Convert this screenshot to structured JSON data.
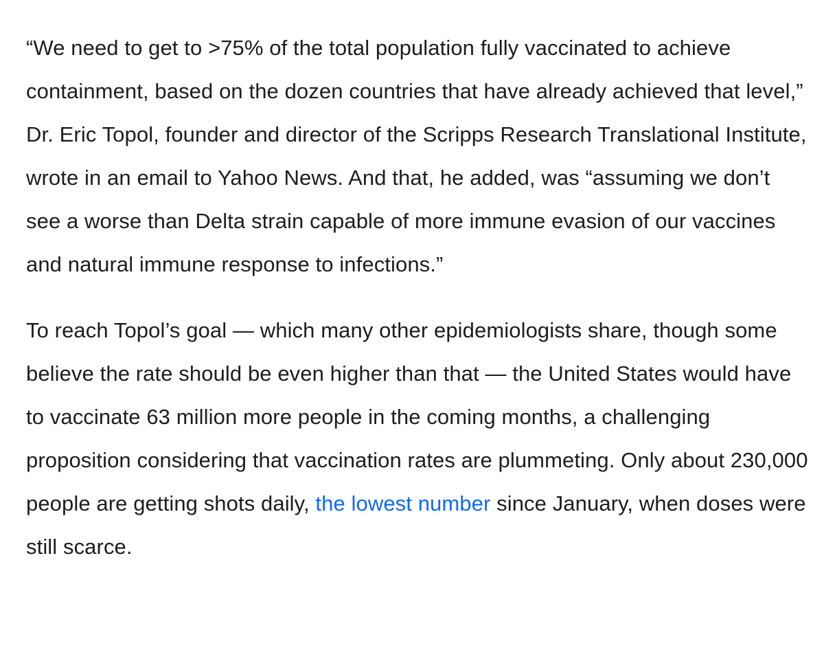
{
  "article": {
    "paragraph1": "“We need to get to >75% of the total population fully vaccinated to achieve containment, based on the dozen countries that have already achieved that level,” Dr. Eric Topol, founder and director of the Scripps Research Translational Institute, wrote in an email to Yahoo News. And that, he added, was “assuming we don’t see a worse than Delta strain capable of more immune evasion of our vaccines and natural immune response to infections.”",
    "paragraph2": {
      "before_link": "To reach Topol’s goal — which many other epidemiologists share, though some believe the rate should be even higher than that — the United States would have to vaccinate 63 million more people in the coming months, a challenging proposition considering that vaccination rates are plummeting. Only about 230,000 people are getting shots daily, ",
      "link_text": "the lowest number",
      "after_link": " since January, when doses were still scarce."
    }
  },
  "colors": {
    "text": "#1d1d1f",
    "link": "#0f69ff",
    "background": "#ffffff"
  }
}
